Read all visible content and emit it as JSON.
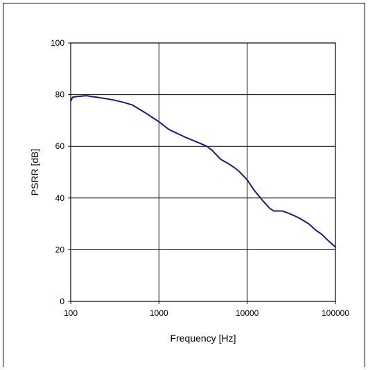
{
  "chart_data": {
    "type": "line",
    "title": "",
    "xlabel": "Frequency [Hz]",
    "ylabel": "PSRR [dB]",
    "x_scale": "log",
    "xlim": [
      100,
      100000
    ],
    "ylim": [
      0,
      100
    ],
    "x_ticks": [
      100,
      1000,
      10000,
      100000
    ],
    "y_ticks": [
      0,
      20,
      40,
      60,
      80,
      100
    ],
    "grid": true,
    "legend": "none",
    "line_color": "#1a1a80",
    "series": [
      {
        "x": [
          100,
          105,
          120,
          150,
          170,
          200,
          300,
          400,
          500,
          700,
          1000,
          1300,
          1500,
          2000,
          3000,
          3500,
          4000,
          5000,
          6000,
          7000,
          8000,
          10000,
          12000,
          15000,
          18000,
          20000,
          22000,
          25000,
          30000,
          35000,
          40000,
          50000,
          60000,
          70000,
          80000,
          100000
        ],
        "y": [
          77.5,
          79,
          79.3,
          79.6,
          79.3,
          79,
          78,
          77,
          76,
          73,
          69.5,
          66.5,
          65.5,
          63.5,
          61,
          60,
          58.5,
          55,
          53.5,
          52,
          50.5,
          47,
          43,
          39,
          36,
          35,
          35,
          35,
          34,
          33,
          32,
          30,
          27.5,
          26,
          24,
          21
        ]
      }
    ]
  }
}
